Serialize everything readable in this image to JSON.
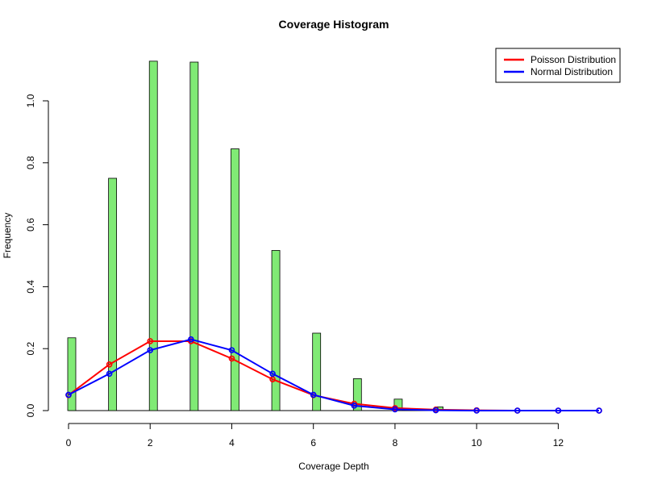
{
  "chart_data": {
    "type": "bar",
    "title": "Coverage Histogram",
    "xlabel": "Coverage Depth",
    "ylabel": "Frequency",
    "xlim": [
      0,
      13
    ],
    "ylim": [
      0,
      1.15
    ],
    "x_ticks": [
      0,
      2,
      4,
      6,
      8,
      10,
      12
    ],
    "y_ticks": [
      0.0,
      0.2,
      0.4,
      0.6,
      0.8,
      1.0
    ],
    "x_tick_labels": [
      "0",
      "2",
      "4",
      "6",
      "8",
      "10",
      "12"
    ],
    "y_tick_labels": [
      "0.0",
      "0.2",
      "0.4",
      "0.6",
      "0.8",
      "1.0"
    ],
    "bar_color": "#80ea75",
    "bars": {
      "x": [
        0,
        1,
        2,
        3,
        4,
        5,
        6,
        7,
        8,
        9
      ],
      "values": [
        0.235,
        0.75,
        1.128,
        1.125,
        0.845,
        0.517,
        0.25,
        0.103,
        0.037,
        0.012
      ]
    },
    "series": [
      {
        "name": "Poisson Distribution",
        "color": "#ff0000",
        "x": [
          0,
          1,
          2,
          3,
          4,
          5,
          6,
          7,
          8,
          9,
          10,
          11,
          12,
          13
        ],
        "values": [
          0.05,
          0.149,
          0.224,
          0.224,
          0.168,
          0.101,
          0.05,
          0.022,
          0.008,
          0.003,
          0.001,
          0.0,
          0.0,
          0.0
        ]
      },
      {
        "name": "Normal Distribution",
        "color": "#0000ff",
        "x": [
          0,
          1,
          2,
          3,
          4,
          5,
          6,
          7,
          8,
          9,
          10,
          11,
          12,
          13
        ],
        "values": [
          0.051,
          0.119,
          0.195,
          0.23,
          0.195,
          0.119,
          0.051,
          0.016,
          0.004,
          0.001,
          0.0,
          0.0,
          0.0,
          0.0
        ]
      }
    ],
    "legend": {
      "position": "top-right",
      "entries": [
        "Poisson Distribution",
        "Normal Distribution"
      ]
    },
    "grid": false
  }
}
